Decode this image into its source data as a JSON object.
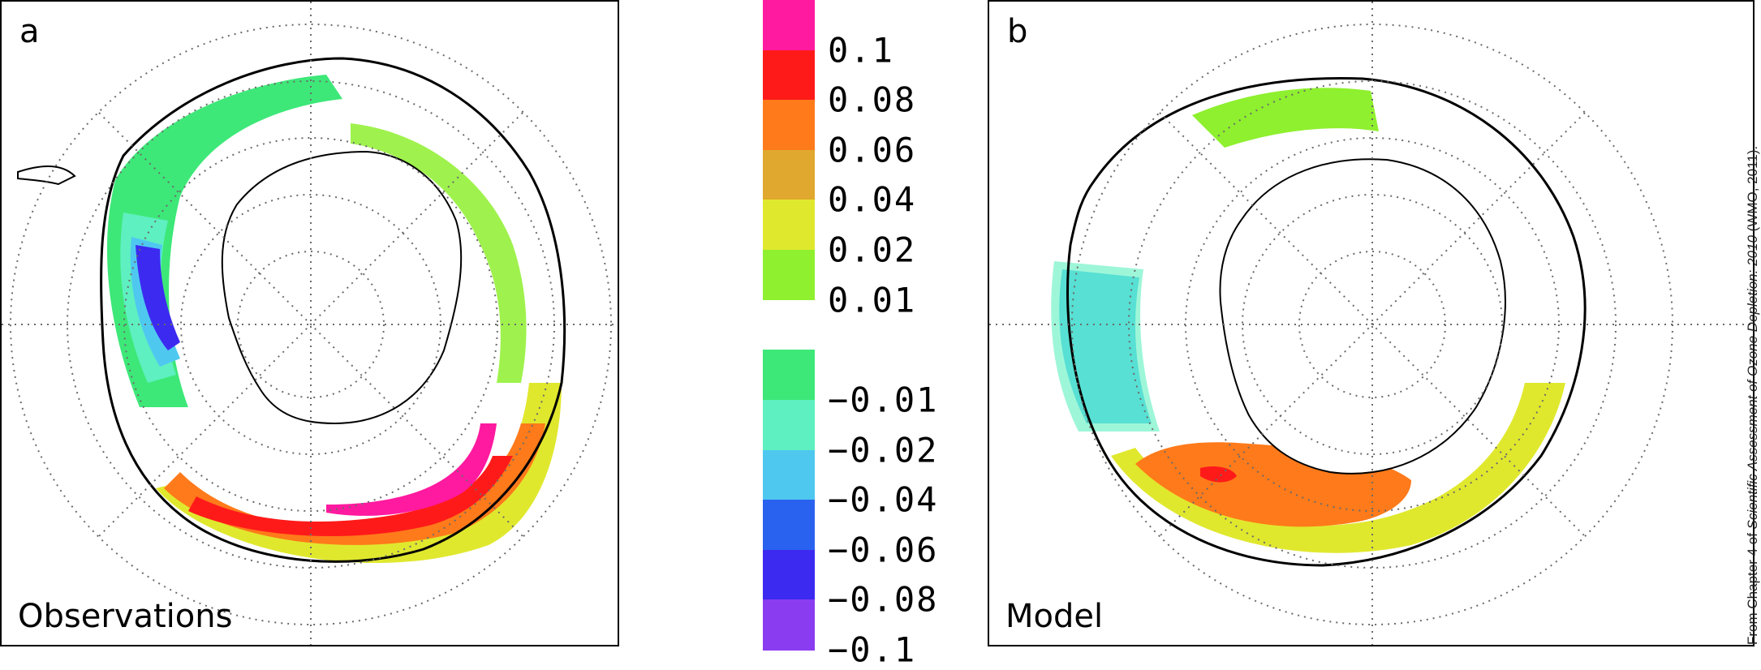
{
  "panels": [
    {
      "letter": "a",
      "name": "Observations"
    },
    {
      "letter": "b",
      "name": "Model"
    }
  ],
  "colorbar": {
    "levels": [
      {
        "label": "0.1",
        "color": "#ff1aa0"
      },
      {
        "label": "0.08",
        "color": "#ff1a1a"
      },
      {
        "label": "0.06",
        "color": "#ff7a1a"
      },
      {
        "label": "0.04",
        "color": "#e0a82e"
      },
      {
        "label": "0.02",
        "color": "#e0e82e"
      },
      {
        "label": "0.01",
        "color": "#8ef02e"
      },
      {
        "label": "",
        "color": "#ffffff"
      },
      {
        "label": "−0.01",
        "color": "#3de878"
      },
      {
        "label": "−0.02",
        "color": "#5ef0c0"
      },
      {
        "label": "−0.04",
        "color": "#4fc8f0"
      },
      {
        "label": "−0.06",
        "color": "#2a62f0"
      },
      {
        "label": "−0.08",
        "color": "#3c2af0"
      },
      {
        "label": "−0.1",
        "color": "#8a3cf0"
      }
    ]
  },
  "credit": {
    "prefix": "From Chapter 4 of ",
    "title": "Scientific Assessment of Ozone Depletion: 2010",
    "suffix": " (WMO, 2011)."
  },
  "map_style": {
    "grid_color": "#6b6b6b",
    "coast_color": "#000000"
  }
}
